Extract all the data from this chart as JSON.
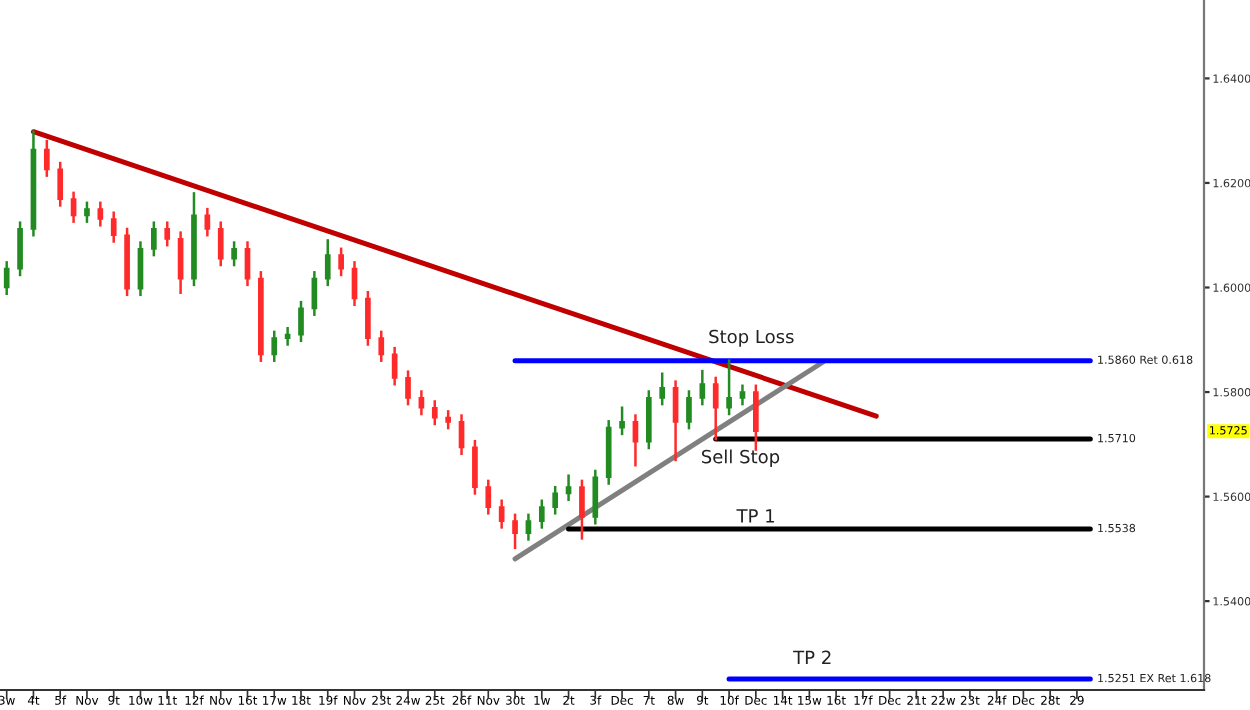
{
  "chart_data": {
    "type": "candlestick",
    "categories": [
      "3w",
      null,
      "4t",
      null,
      "5f",
      null,
      "Nov",
      null,
      "9t",
      null,
      "10w",
      null,
      "11t",
      null,
      "12f",
      null,
      "Nov",
      null,
      "16t",
      null,
      "17w",
      null,
      "18t",
      null,
      "19f",
      null,
      "Nov",
      null,
      "23t",
      null,
      "24w",
      null,
      "25t",
      null,
      "26f",
      null,
      "Nov",
      null,
      "30t",
      null,
      "1w",
      null,
      "2t",
      null,
      "3f",
      null,
      "Dec",
      null,
      "7t",
      null,
      "8w",
      null,
      "9t",
      null,
      "10f",
      null,
      "Dec",
      null,
      "14t",
      null,
      "15w",
      null,
      "16t",
      null,
      "17f",
      null,
      "Dec",
      null,
      "21t",
      null,
      "22w",
      null,
      "23t",
      null,
      "24f",
      null,
      "Dec",
      null,
      "28t",
      null,
      "29",
      null,
      null,
      null,
      null,
      null,
      null,
      null,
      null,
      null
    ],
    "ohlc": [
      [
        1.6,
        1.6048,
        1.5988,
        1.6036
      ],
      [
        1.6036,
        1.6124,
        1.6024,
        1.6112
      ],
      [
        1.6112,
        1.6298,
        1.61,
        1.6264
      ],
      [
        1.6264,
        1.628,
        1.6214,
        1.6226
      ],
      [
        1.6226,
        1.6238,
        1.6157,
        1.6169
      ],
      [
        1.6169,
        1.6181,
        1.6126,
        1.6138
      ],
      [
        1.6138,
        1.6162,
        1.6126,
        1.615
      ],
      [
        1.615,
        1.6162,
        1.6119,
        1.6131
      ],
      [
        1.6131,
        1.6143,
        1.6088,
        1.61
      ],
      [
        1.61,
        1.6112,
        1.5986,
        1.5998
      ],
      [
        1.5998,
        1.6086,
        1.5986,
        1.6074
      ],
      [
        1.6074,
        1.6124,
        1.6062,
        1.6112
      ],
      [
        1.6112,
        1.6124,
        1.6081,
        1.6093
      ],
      [
        1.6093,
        1.6105,
        1.599,
        1.6017
      ],
      [
        1.6017,
        1.618,
        1.6005,
        1.6138
      ],
      [
        1.6138,
        1.615,
        1.61,
        1.6112
      ],
      [
        1.6112,
        1.6124,
        1.6043,
        1.6055
      ],
      [
        1.6055,
        1.6086,
        1.6043,
        1.6074
      ],
      [
        1.6074,
        1.6086,
        1.6005,
        1.6017
      ],
      [
        1.6017,
        1.6029,
        1.586,
        1.5872
      ],
      [
        1.5872,
        1.5915,
        1.586,
        1.5903
      ],
      [
        1.5903,
        1.5922,
        1.5891,
        1.591
      ],
      [
        1.591,
        1.5972,
        1.5898,
        1.596
      ],
      [
        1.596,
        1.6029,
        1.5948,
        1.6017
      ],
      [
        1.6017,
        1.609,
        1.6005,
        1.6062
      ],
      [
        1.6062,
        1.6074,
        1.6024,
        1.6036
      ],
      [
        1.6036,
        1.6048,
        1.5967,
        1.5979
      ],
      [
        1.5979,
        1.5991,
        1.5891,
        1.5903
      ],
      [
        1.5903,
        1.5915,
        1.586,
        1.5872
      ],
      [
        1.5872,
        1.5884,
        1.5815,
        1.5827
      ],
      [
        1.5827,
        1.5839,
        1.5777,
        1.5789
      ],
      [
        1.5789,
        1.5801,
        1.5758,
        1.577
      ],
      [
        1.577,
        1.5782,
        1.5739,
        1.5751
      ],
      [
        1.5751,
        1.5763,
        1.5731,
        1.5743
      ],
      [
        1.5743,
        1.5755,
        1.5682,
        1.5694
      ],
      [
        1.5694,
        1.5706,
        1.5606,
        1.5618
      ],
      [
        1.5618,
        1.563,
        1.5568,
        1.558
      ],
      [
        1.558,
        1.5592,
        1.5541,
        1.5553
      ],
      [
        1.5553,
        1.5565,
        1.5502,
        1.553
      ],
      [
        1.553,
        1.5565,
        1.5518,
        1.5553
      ],
      [
        1.5553,
        1.5592,
        1.5541,
        1.558
      ],
      [
        1.558,
        1.5618,
        1.5568,
        1.5606
      ],
      [
        1.5606,
        1.564,
        1.5594,
        1.5618
      ],
      [
        1.5618,
        1.563,
        1.552,
        1.5561
      ],
      [
        1.5561,
        1.5649,
        1.5549,
        1.5637
      ],
      [
        1.5637,
        1.5744,
        1.5625,
        1.5732
      ],
      [
        1.5732,
        1.577,
        1.572,
        1.5743
      ],
      [
        1.5743,
        1.5755,
        1.566,
        1.5705
      ],
      [
        1.5705,
        1.5801,
        1.5693,
        1.5789
      ],
      [
        1.5789,
        1.5835,
        1.5777,
        1.5808
      ],
      [
        1.5808,
        1.582,
        1.567,
        1.5743
      ],
      [
        1.5743,
        1.5801,
        1.5731,
        1.5789
      ],
      [
        1.5789,
        1.584,
        1.5777,
        1.5815
      ],
      [
        1.5815,
        1.5827,
        1.571,
        1.577
      ],
      [
        1.577,
        1.586,
        1.5758,
        1.5789
      ],
      [
        1.5789,
        1.5812,
        1.5777,
        1.58
      ],
      [
        1.58,
        1.5812,
        1.569,
        1.5725
      ],
      null,
      null,
      null,
      null,
      null,
      null,
      null,
      null,
      null,
      null,
      null,
      null,
      null,
      null,
      null,
      null,
      null,
      null,
      null,
      null,
      null,
      null,
      null,
      null,
      null,
      null,
      null,
      null,
      null,
      null,
      null,
      null,
      null
    ],
    "colors": [
      "#228b22",
      "#228b22",
      "#228b22",
      "#ff2a2a",
      "#ff2a2a",
      "#ff2a2a",
      "#228b22",
      "#ff2a2a",
      "#ff2a2a",
      "#ff2a2a",
      "#228b22",
      "#228b22",
      "#ff2a2a",
      "#ff2a2a",
      "#228b22",
      "#ff2a2a",
      "#ff2a2a",
      "#228b22",
      "#ff2a2a",
      "#ff2a2a",
      "#228b22",
      "#228b22",
      "#228b22",
      "#228b22",
      "#228b22",
      "#ff2a2a",
      "#ff2a2a",
      "#ff2a2a",
      "#ff2a2a",
      "#ff2a2a",
      "#ff2a2a",
      "#ff2a2a",
      "#ff2a2a",
      "#ff2a2a",
      "#ff2a2a",
      "#ff2a2a",
      "#ff2a2a",
      "#ff2a2a",
      "#ff2a2a",
      "#228b22",
      "#228b22",
      "#228b22",
      "#228b22",
      "#ff2a2a",
      "#228b22",
      "#228b22",
      "#228b22",
      "#ff2a2a",
      "#228b22",
      "#228b22",
      "#ff2a2a",
      "#228b22",
      "#228b22",
      "#ff2a2a",
      "#228b22",
      "#228b22",
      "#ff2a2a",
      null,
      null,
      null,
      null,
      null,
      null,
      null,
      null,
      null,
      null,
      null,
      null,
      null,
      null,
      null,
      null,
      null,
      null,
      null,
      null,
      null,
      null,
      null,
      null,
      null,
      null,
      null,
      null,
      null,
      null,
      null,
      null,
      null
    ],
    "series": [
      {
        "type": "line",
        "color": "#c00000",
        "values": [
          null,
          null,
          1.6298,
          null,
          null,
          null,
          null,
          null,
          null,
          null,
          null,
          null,
          null,
          null,
          null,
          null,
          null,
          null,
          null,
          null,
          null,
          null,
          null,
          null,
          null,
          null,
          null,
          null,
          null,
          null,
          null,
          null,
          null,
          null,
          null,
          null,
          null,
          null,
          null,
          null,
          null,
          null,
          null,
          null,
          null,
          null,
          null,
          null,
          null,
          null,
          null,
          null,
          null,
          null,
          null,
          null,
          null,
          null,
          null,
          null,
          null,
          null,
          null,
          null,
          null,
          1.5754,
          null,
          null,
          null,
          null,
          null,
          null,
          null,
          null,
          null,
          null,
          null,
          null,
          null,
          null,
          null,
          null,
          null,
          null,
          null,
          null,
          null,
          null,
          null,
          null
        ]
      },
      {
        "type": "line",
        "color": "#808080",
        "values": [
          null,
          null,
          null,
          null,
          null,
          null,
          null,
          null,
          null,
          null,
          null,
          null,
          null,
          null,
          null,
          null,
          null,
          null,
          null,
          null,
          null,
          null,
          null,
          null,
          null,
          null,
          null,
          null,
          null,
          null,
          null,
          null,
          null,
          null,
          null,
          null,
          null,
          null,
          1.5481,
          null,
          null,
          null,
          null,
          null,
          null,
          null,
          null,
          null,
          null,
          null,
          null,
          null,
          null,
          null,
          null,
          null,
          null,
          null,
          null,
          null,
          null,
          1.5857,
          null,
          null,
          null,
          null,
          null,
          null,
          null,
          null,
          null,
          null,
          null,
          null,
          null,
          null,
          null,
          null,
          null,
          null,
          null,
          null,
          null,
          null,
          null,
          null,
          null,
          null,
          null,
          null
        ]
      },
      {
        "type": "line",
        "color": "#0000ff",
        "values": [
          null,
          null,
          null,
          null,
          null,
          null,
          null,
          null,
          null,
          null,
          null,
          null,
          null,
          null,
          null,
          null,
          null,
          null,
          null,
          null,
          null,
          null,
          null,
          null,
          null,
          null,
          null,
          null,
          null,
          null,
          null,
          null,
          null,
          null,
          null,
          null,
          null,
          null,
          1.586,
          null,
          null,
          null,
          null,
          null,
          null,
          null,
          null,
          null,
          null,
          null,
          null,
          null,
          null,
          null,
          null,
          null,
          null,
          null,
          null,
          null,
          null,
          null,
          null,
          null,
          null,
          null,
          null,
          null,
          null,
          null,
          null,
          null,
          null,
          null,
          null,
          null,
          null,
          null,
          null,
          null,
          null,
          1.586,
          null,
          null,
          null,
          null,
          null,
          null,
          null,
          null
        ]
      },
      {
        "type": "line",
        "color": "#000000",
        "values": [
          null,
          null,
          null,
          null,
          null,
          null,
          null,
          null,
          null,
          null,
          null,
          null,
          null,
          null,
          null,
          null,
          null,
          null,
          null,
          null,
          null,
          null,
          null,
          null,
          null,
          null,
          null,
          null,
          null,
          null,
          null,
          null,
          null,
          null,
          null,
          null,
          null,
          null,
          null,
          null,
          null,
          null,
          null,
          null,
          null,
          null,
          null,
          null,
          null,
          null,
          null,
          null,
          null,
          1.571,
          null,
          null,
          null,
          null,
          null,
          null,
          null,
          null,
          null,
          null,
          null,
          null,
          null,
          null,
          null,
          null,
          null,
          null,
          null,
          null,
          null,
          null,
          null,
          null,
          null,
          null,
          null,
          1.571,
          null,
          null,
          null,
          null,
          null,
          null,
          null,
          null
        ]
      },
      {
        "type": "line",
        "color": "#000000",
        "values": [
          null,
          null,
          null,
          null,
          null,
          null,
          null,
          null,
          null,
          null,
          null,
          null,
          null,
          null,
          null,
          null,
          null,
          null,
          null,
          null,
          null,
          null,
          null,
          null,
          null,
          null,
          null,
          null,
          null,
          null,
          null,
          null,
          null,
          null,
          null,
          null,
          null,
          null,
          null,
          null,
          null,
          null,
          1.5538,
          null,
          null,
          null,
          null,
          null,
          null,
          null,
          null,
          null,
          null,
          null,
          null,
          null,
          null,
          null,
          null,
          null,
          null,
          null,
          null,
          null,
          null,
          null,
          null,
          null,
          null,
          null,
          null,
          null,
          null,
          null,
          null,
          null,
          null,
          null,
          null,
          null,
          null,
          1.5538,
          null,
          null,
          null,
          null,
          null,
          null,
          null,
          null
        ]
      },
      {
        "type": "line",
        "color": "#0000ff",
        "values": [
          null,
          null,
          null,
          null,
          null,
          null,
          null,
          null,
          null,
          null,
          null,
          null,
          null,
          null,
          null,
          null,
          null,
          null,
          null,
          null,
          null,
          null,
          null,
          null,
          null,
          null,
          null,
          null,
          null,
          null,
          null,
          null,
          null,
          null,
          null,
          null,
          null,
          null,
          null,
          null,
          null,
          null,
          null,
          null,
          null,
          null,
          null,
          null,
          null,
          null,
          null,
          null,
          null,
          null,
          1.5251,
          null,
          null,
          null,
          null,
          null,
          null,
          null,
          null,
          null,
          null,
          null,
          null,
          null,
          null,
          null,
          null,
          null,
          null,
          null,
          null,
          null,
          null,
          null,
          null,
          null,
          null,
          1.5251,
          null,
          null,
          null,
          null,
          null,
          null,
          null,
          null
        ]
      }
    ],
    "annotations": [
      "Stop Loss",
      "Sell Stop",
      "TP 1",
      "TP 2",
      "1.5860 Ret 0.618",
      "1.5710",
      "1.5538",
      "1.5251 EX Ret 1.618",
      {
        "text": "1.5725",
        "y": 1.5725
      }
    ],
    "ylim": [
      1.523,
      1.655
    ],
    "yticks": [
      {
        "value": 1.54,
        "label": "1.5400"
      },
      {
        "value": 1.56,
        "label": "1.5600"
      },
      {
        "value": 1.58,
        "label": "1.5800"
      },
      {
        "value": 1.6,
        "label": "1.6000"
      },
      {
        "value": 1.62,
        "label": "1.6200"
      },
      {
        "value": 1.64,
        "label": "1.6400"
      }
    ],
    "grid": false,
    "legend": false
  }
}
